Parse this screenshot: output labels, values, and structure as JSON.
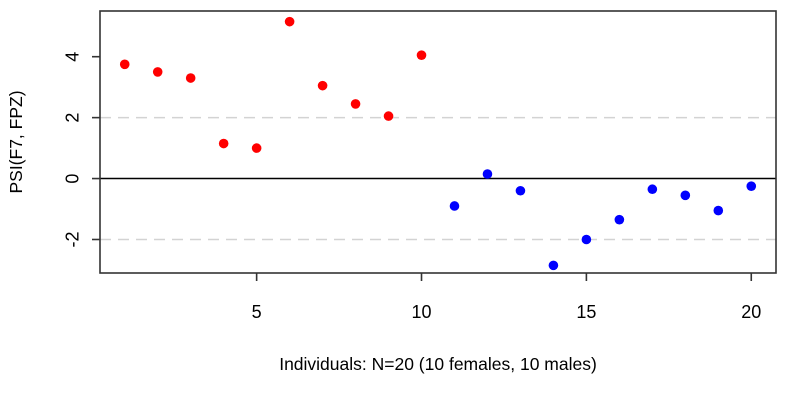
{
  "figure": {
    "background": "#ffffff"
  },
  "chart_data": {
    "type": "scatter",
    "title": "",
    "xlabel": "Individuals: N=20 (10 females, 10 males)",
    "ylabel": "PSI(F7, FPZ)",
    "xlim": [
      0.25,
      20.75
    ],
    "ylim": [
      -3.1,
      5.5
    ],
    "x_ticks": [
      5,
      10,
      15,
      20
    ],
    "y_ticks": [
      -2,
      0,
      2,
      4
    ],
    "grid": "horizontal dashed reference lines at y=2 and y=-2, solid black line at y=0",
    "legend": "none",
    "point_style": "filled-circle",
    "point_radius_px": 4.8,
    "axis_color": "#333333",
    "text_color": "#000000",
    "series": [
      {
        "name": "females",
        "color": "#ff0000",
        "x": [
          1,
          2,
          3,
          4,
          5,
          6,
          7,
          8,
          9,
          10
        ],
        "y": [
          3.75,
          3.5,
          3.3,
          1.15,
          1.0,
          5.15,
          3.05,
          2.45,
          2.05,
          4.05
        ]
      },
      {
        "name": "males",
        "color": "#0000ff",
        "x": [
          11,
          12,
          13,
          14,
          15,
          16,
          17,
          18,
          19,
          20
        ],
        "y": [
          -0.9,
          0.15,
          -0.4,
          -2.85,
          -2.0,
          -1.35,
          -0.35,
          -0.55,
          -1.05,
          -0.25
        ]
      }
    ],
    "reference_lines": [
      {
        "y": 2,
        "style": "dashed",
        "color": "#d3d3d3"
      },
      {
        "y": 0,
        "style": "solid",
        "color": "#000000"
      },
      {
        "y": -2,
        "style": "dashed",
        "color": "#d3d3d3"
      }
    ]
  }
}
